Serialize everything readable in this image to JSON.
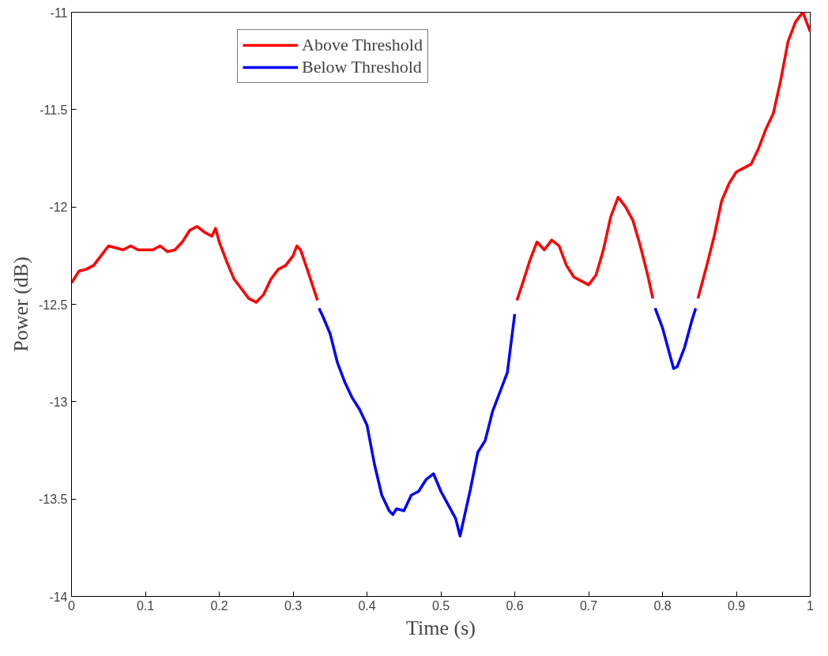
{
  "chart_data": {
    "type": "line",
    "xlabel": "Time (s)",
    "ylabel": "Power (dB)",
    "xlim": [
      0,
      1
    ],
    "ylim": [
      -14,
      -11
    ],
    "xticks": [
      0,
      0.1,
      0.2,
      0.3,
      0.4,
      0.5,
      0.6,
      0.7,
      0.8,
      0.9,
      1
    ],
    "yticks": [
      -14,
      -13.5,
      -13,
      -12.5,
      -12,
      -11.5,
      -11
    ],
    "grid": false,
    "legend": "top left",
    "line_style": "solid",
    "marker": "none",
    "series": [
      {
        "name": "Above Threshold",
        "color": "#ff0000",
        "x": [
          0,
          0.01,
          0.02,
          0.03,
          0.04,
          0.05,
          0.06,
          0.07,
          0.08,
          0.09,
          0.1,
          0.11,
          0.12,
          0.13,
          0.14,
          0.15,
          0.16,
          0.17,
          0.18,
          0.19,
          0.195,
          0.2,
          0.21,
          0.22,
          0.23,
          0.24,
          0.25,
          0.26,
          0.27,
          0.28,
          0.29,
          0.3,
          0.305,
          0.31,
          0.32,
          0.333,
          0.47,
          0.603,
          0.61,
          0.62,
          0.63,
          0.64,
          0.65,
          0.66,
          0.67,
          0.68,
          0.69,
          0.7,
          0.71,
          0.72,
          0.73,
          0.74,
          0.75,
          0.76,
          0.77,
          0.78,
          0.787,
          0.82,
          0.848,
          0.86,
          0.87,
          0.88,
          0.89,
          0.9,
          0.91,
          0.92,
          0.93,
          0.94,
          0.95,
          0.96,
          0.97,
          0.98,
          0.99,
          1
        ],
        "values": [
          -12.39,
          -12.33,
          -12.32,
          -12.3,
          -12.25,
          -12.2,
          -12.21,
          -12.22,
          -12.2,
          -12.22,
          -12.22,
          -12.22,
          -12.2,
          -12.23,
          -12.22,
          -12.18,
          -12.12,
          -12.1,
          -12.13,
          -12.15,
          -12.11,
          -12.18,
          -12.28,
          -12.37,
          -12.42,
          -12.47,
          -12.49,
          -12.45,
          -12.37,
          -12.32,
          -12.3,
          -12.25,
          -12.2,
          -12.22,
          -12.33,
          -12.48,
          null,
          -12.48,
          -12.4,
          -12.28,
          -12.18,
          -12.22,
          -12.17,
          -12.2,
          -12.3,
          -12.36,
          -12.38,
          -12.4,
          -12.35,
          -12.22,
          -12.05,
          -11.95,
          -12.0,
          -12.07,
          -12.2,
          -12.35,
          -12.47,
          null,
          -12.47,
          -12.3,
          -12.15,
          -11.97,
          -11.88,
          -11.82,
          -11.8,
          -11.78,
          -11.7,
          -11.6,
          -11.52,
          -11.35,
          -11.15,
          -11.05,
          -11.0,
          -11.1
        ]
      },
      {
        "name": "Below Threshold",
        "color": "#0000ff",
        "x": [
          0.335,
          0.34,
          0.35,
          0.36,
          0.37,
          0.38,
          0.39,
          0.4,
          0.41,
          0.42,
          0.43,
          0.435,
          0.44,
          0.45,
          0.46,
          0.47,
          0.48,
          0.49,
          0.5,
          0.51,
          0.52,
          0.526,
          0.53,
          0.54,
          0.55,
          0.56,
          0.57,
          0.58,
          0.59,
          0.6,
          0.7,
          0.79,
          0.8,
          0.81,
          0.815,
          0.82,
          0.83,
          0.84,
          0.845
        ],
        "values": [
          -12.52,
          -12.56,
          -12.65,
          -12.8,
          -12.9,
          -12.98,
          -13.04,
          -13.12,
          -13.32,
          -13.48,
          -13.56,
          -13.58,
          -13.55,
          -13.56,
          -13.48,
          -13.46,
          -13.4,
          -13.37,
          -13.46,
          -13.53,
          -13.6,
          -13.69,
          -13.62,
          -13.45,
          -13.26,
          -13.2,
          -13.05,
          -12.95,
          -12.85,
          -12.55,
          null,
          -12.52,
          -12.62,
          -12.76,
          -12.83,
          -12.82,
          -12.72,
          -12.58,
          -12.52
        ]
      }
    ]
  }
}
